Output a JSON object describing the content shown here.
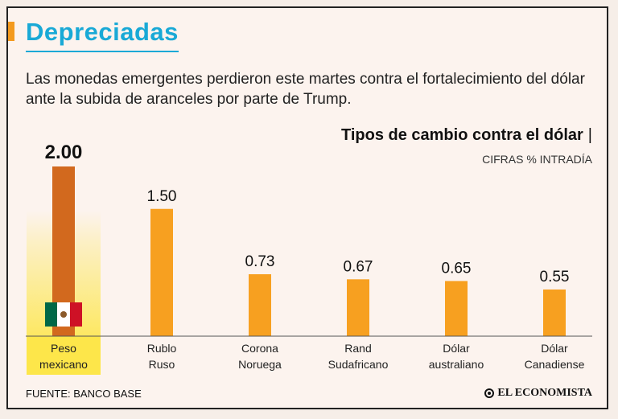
{
  "header": {
    "title": "Depreciadas",
    "subtitle": "Las monedas emergentes perdieron este martes contra el fortalecimiento del dólar ante la subida de aranceles por parte de Trump."
  },
  "chart_title": {
    "title": "Tipos de cambio contra el dólar",
    "separator": "|",
    "subtitle": "CIFRAS % INTRADÍA"
  },
  "colors": {
    "bar": "#f7a020",
    "highlight_bar": "#d2691e",
    "highlight_bg": "#fde64a",
    "title": "#19a9d6"
  },
  "chart_data": {
    "type": "bar",
    "categories": [
      [
        "Peso",
        "mexicano"
      ],
      [
        "Rublo",
        "Ruso"
      ],
      [
        "Corona",
        "Noruega"
      ],
      [
        "Rand",
        "Sudafricano"
      ],
      [
        "Dólar",
        "australiano"
      ],
      [
        "Dólar",
        "Canadiense"
      ]
    ],
    "values": [
      2.0,
      1.5,
      0.73,
      0.67,
      0.65,
      0.55
    ],
    "value_labels": [
      "2.00",
      "1.50",
      "0.73",
      "0.67",
      "0.65",
      "0.55"
    ],
    "highlight_index": 0,
    "highlight_icon": "mexico-flag-icon",
    "ylim": [
      0,
      2.0
    ]
  },
  "footer": {
    "source": "FUENTE: BANCO BASE",
    "logo": "EL ECONOMISTA"
  }
}
